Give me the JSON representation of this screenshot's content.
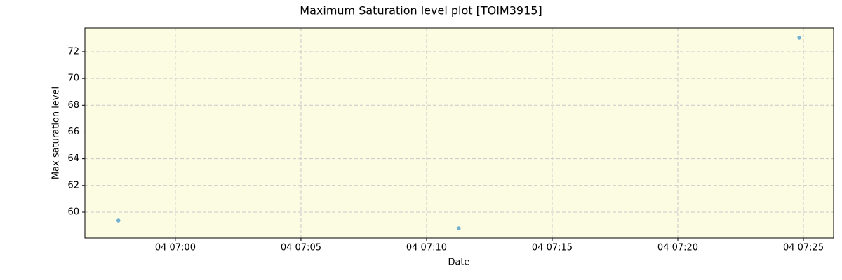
{
  "chart_data": {
    "type": "scatter",
    "title": "Maximum Saturation level plot [TOIM3915]",
    "x_label": "Date",
    "y_label": "Max saturation level",
    "x": [
      "04 06:57:44",
      "04 07:11:17",
      "04 07:24:50"
    ],
    "series": [
      {
        "name": "Max saturation level",
        "color": "#5ba3cf",
        "values": [
          59.37,
          58.79,
          73.05
        ]
      }
    ],
    "xlim": [
      "04 06:56:24",
      "04 07:26:12"
    ],
    "xticks": [
      "04 07:00",
      "04 07:05",
      "04 07:10",
      "04 07:15",
      "04 07:20",
      "04 07:25"
    ],
    "ylim": [
      58.06,
      73.78
    ],
    "yticks": [
      60,
      62,
      64,
      66,
      68,
      70,
      72
    ],
    "grid": true,
    "background": "#fcfce3"
  }
}
